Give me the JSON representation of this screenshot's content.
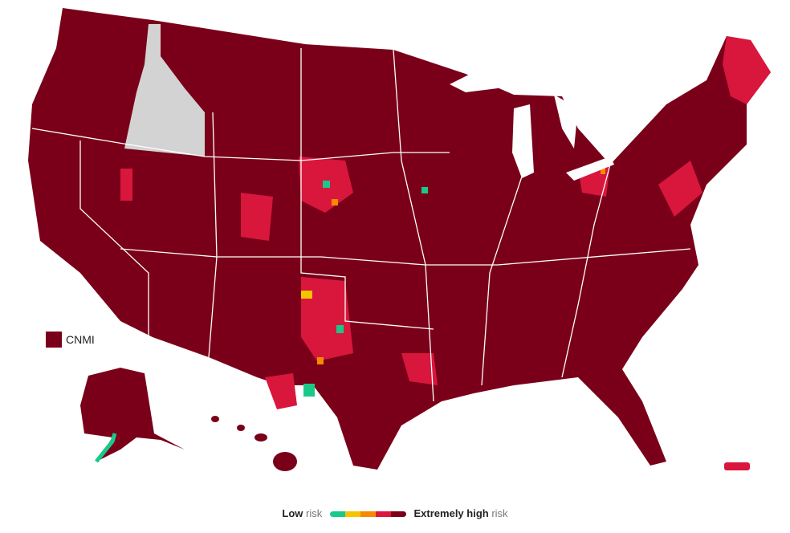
{
  "map": {
    "territory_label": "CNMI"
  },
  "legend": {
    "low": "Low",
    "low_suffix": "risk",
    "high": "Extremely high",
    "high_suffix": "risk",
    "colors": [
      "#19c98a",
      "#f5c400",
      "#f58a00",
      "#d9163c",
      "#7a0019"
    ]
  }
}
